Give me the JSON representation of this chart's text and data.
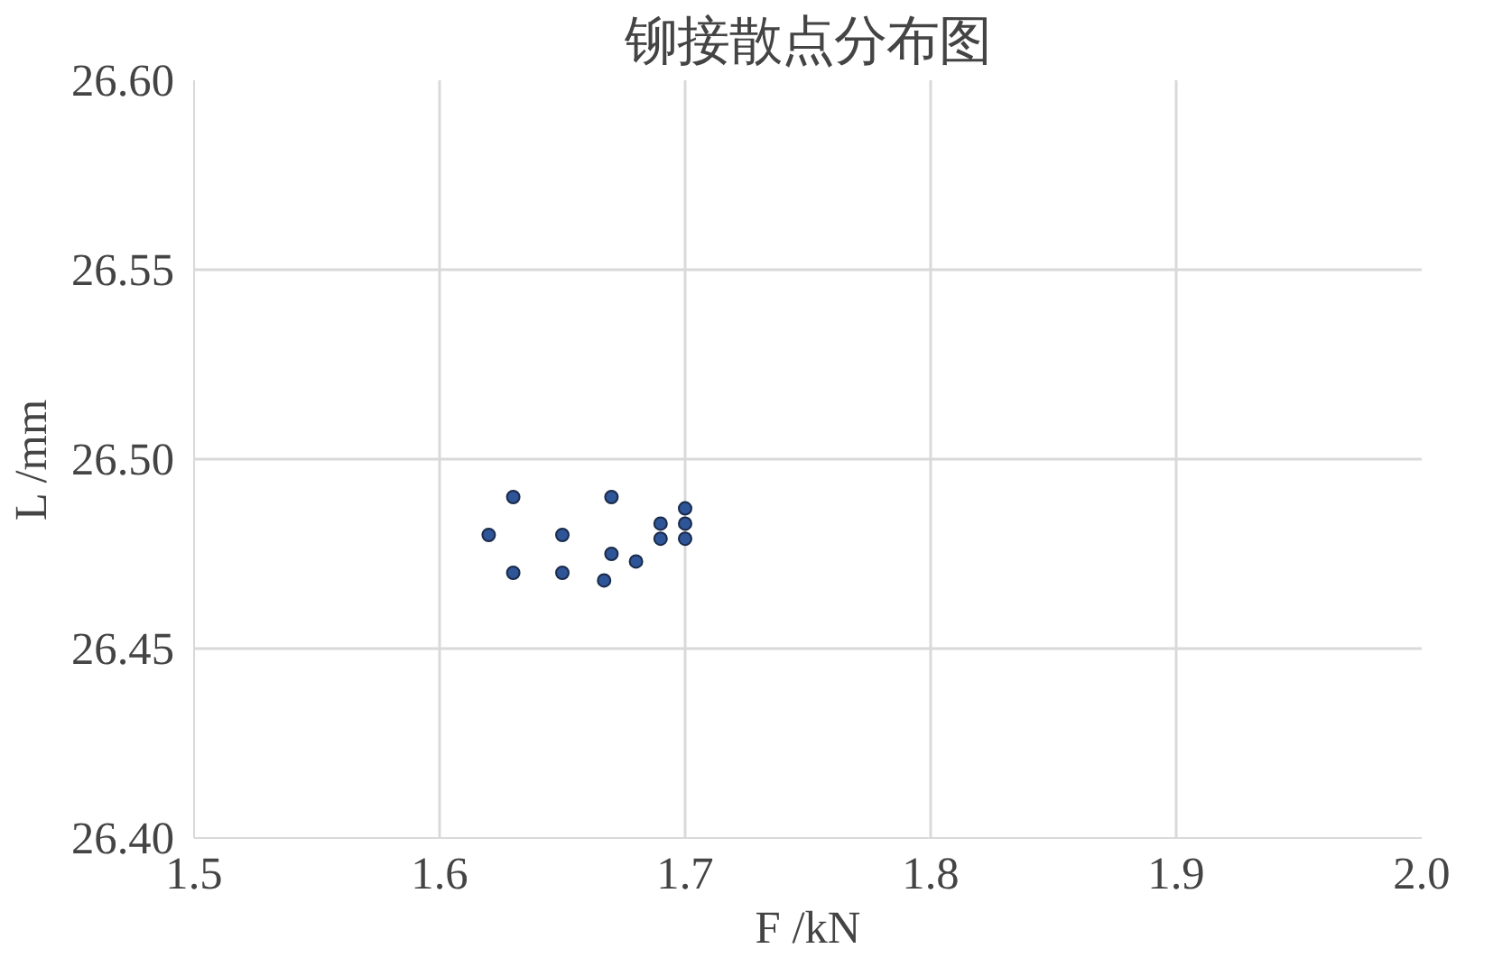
{
  "chart_data": {
    "type": "scatter",
    "title": "铆接散点分布图",
    "xlabel": "F /kN",
    "ylabel": "L /mm",
    "x": [
      1.63,
      1.62,
      1.63,
      1.65,
      1.65,
      1.67,
      1.67,
      1.667,
      1.68,
      1.69,
      1.69,
      1.7,
      1.7,
      1.7
    ],
    "series": [
      {
        "color": "#2e5597",
        "values": [
          26.49,
          26.48,
          26.47,
          26.48,
          26.47,
          26.49,
          26.475,
          26.468,
          26.473,
          26.483,
          26.479,
          26.487,
          26.483,
          26.479
        ]
      }
    ],
    "xlim": [
      1.5,
      2.0
    ],
    "xticks": [
      1.5,
      1.6,
      1.7,
      1.8,
      1.9,
      {
        "value": 2.0,
        "label": "2.0"
      }
    ],
    "ylim": [
      26.4,
      26.6
    ],
    "yticks": [
      {
        "value": 26.4,
        "label": "26.40"
      },
      {
        "value": 26.45,
        "label": "26.45"
      },
      {
        "value": 26.5,
        "label": "26.50"
      },
      {
        "value": 26.55,
        "label": "26.55"
      },
      {
        "value": 26.6,
        "label": "26.60"
      }
    ],
    "grid": true,
    "marker": "circle"
  }
}
